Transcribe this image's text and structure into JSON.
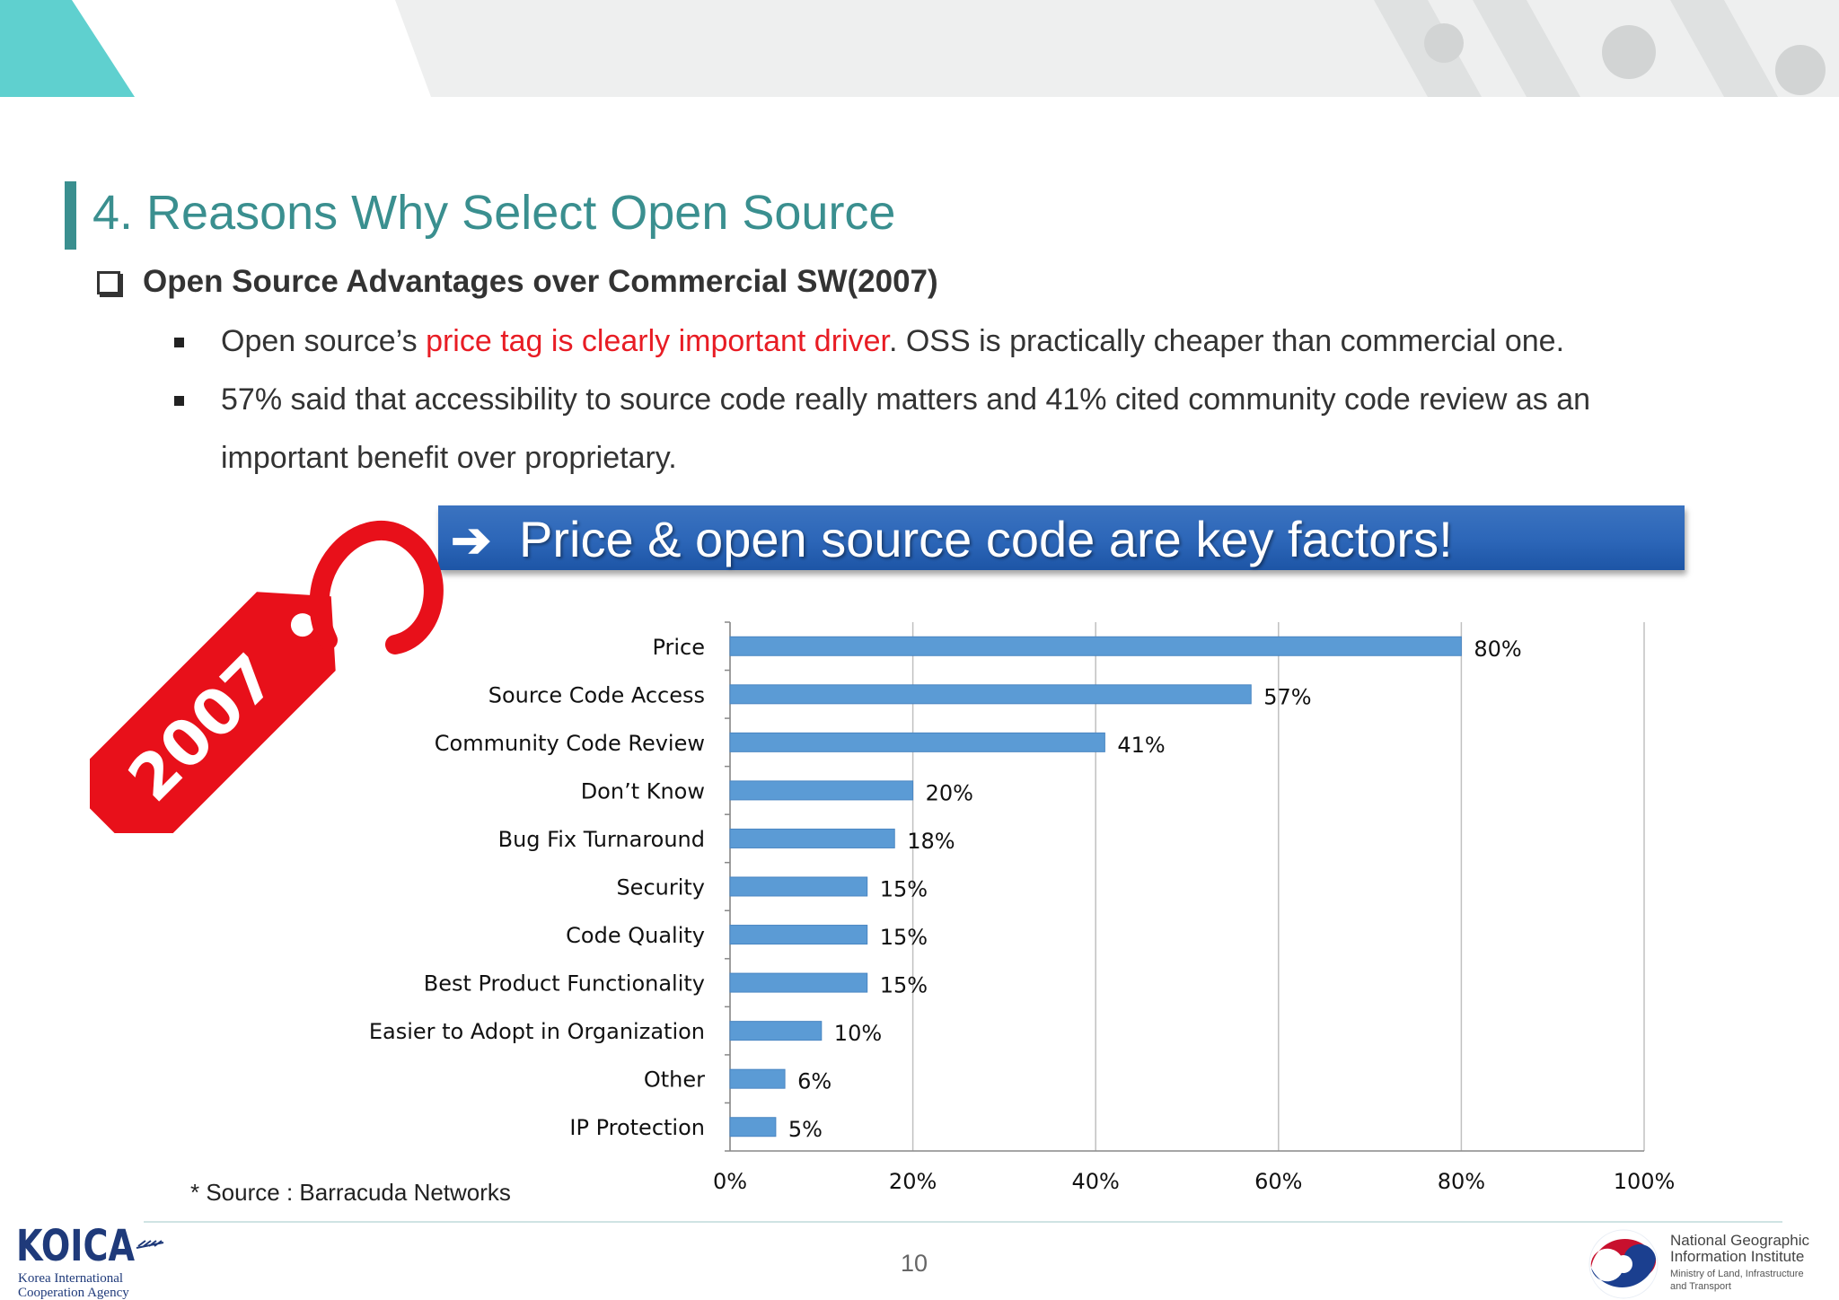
{
  "slide": {
    "title": "4. Reasons Why Select Open Source",
    "subheading": "Open Source Advantages over Commercial SW(2007)",
    "bullets": [
      {
        "before": "Open source’s ",
        "highlight": "price tag is clearly important driver",
        "after": ". OSS is practically cheaper than commercial one."
      },
      {
        "line1": "57% said that accessibility to source code really matters and 41% cited community code review as an",
        "line2": "important benefit over proprietary."
      }
    ],
    "callout": {
      "arrow": "➔",
      "text": "Price & open source code are key factors!"
    },
    "tag_label": "2007",
    "source_note": "* Source : Barracuda Networks",
    "page_number": "10",
    "footer": {
      "left_logo": {
        "name": "KOICA",
        "line1": "Korea International",
        "line2": "Cooperation Agency"
      },
      "right_logo": {
        "line1": "National Geographic",
        "line2": "Information Institute",
        "line3": "Ministry of Land, Infrastructure",
        "line4": "and Transport"
      }
    },
    "colors": {
      "title": "#3a8f8f",
      "highlight": "#e81c24",
      "bar": "#5b9bd5",
      "banner_blue": "#2c66b8",
      "tag_red": "#e8101a",
      "teal_accent": "#5fd0cf"
    }
  },
  "chart_data": {
    "type": "bar",
    "orientation": "horizontal",
    "categories": [
      "Price",
      "Source Code Access",
      "Community Code Review",
      "Don’t Know",
      "Bug Fix Turnaround",
      "Security",
      "Code Quality",
      "Best Product Functionality",
      "Easier to Adopt in Organization",
      "Other",
      "IP Protection"
    ],
    "values": [
      80,
      57,
      41,
      20,
      18,
      15,
      15,
      15,
      10,
      6,
      5
    ],
    "data_labels": [
      "80%",
      "57%",
      "41%",
      "20%",
      "18%",
      "15%",
      "15%",
      "15%",
      "10%",
      "6%",
      "5%"
    ],
    "x_ticks": [
      "0%",
      "20%",
      "40%",
      "60%",
      "80%",
      "100%"
    ],
    "x_tick_values": [
      0,
      20,
      40,
      60,
      80,
      100
    ],
    "xlim": [
      0,
      100
    ],
    "grid": true
  }
}
